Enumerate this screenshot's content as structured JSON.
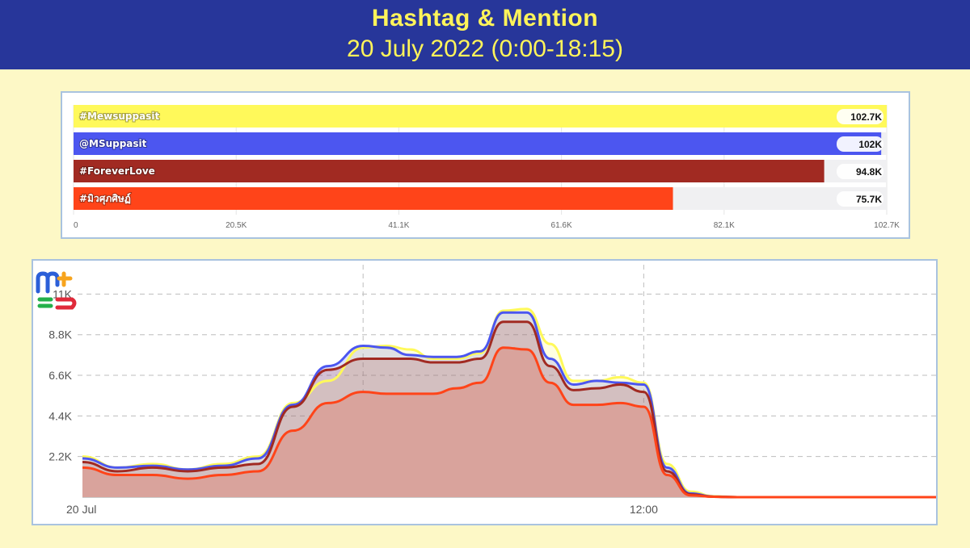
{
  "header": {
    "title": "Hashtag & Mention",
    "subtitle": "20 July 2022 (0:00-18:15)"
  },
  "chart_data": [
    {
      "type": "bar",
      "orientation": "horizontal",
      "categories": [
        "#Mewsuppasit",
        "@MSuppasit",
        "#ForeverLove",
        "#มิวศุภศิษฏ์"
      ],
      "values": [
        102.7,
        102,
        94.8,
        75.7
      ],
      "value_labels": [
        "102.7K",
        "102K",
        "94.8K",
        "75.7K"
      ],
      "unit": "K",
      "xlim": [
        0,
        102.7
      ],
      "x_ticks": [
        "0",
        "20.5K",
        "41.1K",
        "61.6K",
        "82.1K",
        "102.7K"
      ],
      "colors": [
        "#fff95a",
        "#4c56f0",
        "#a12a22",
        "#ff4419"
      ],
      "grid": true
    },
    {
      "type": "area",
      "x": [
        0,
        0.75,
        1.5,
        2.25,
        3,
        3.75,
        4.5,
        5.25,
        6,
        6.5,
        7,
        7.5,
        8,
        8.5,
        9,
        9.5,
        10,
        10.5,
        11,
        11.5,
        12,
        12.5,
        13,
        13.5,
        14,
        14.5,
        15,
        15.5,
        16,
        16.5,
        17,
        17.25,
        17.5,
        17.75,
        18,
        18.25
      ],
      "x_ticks": [
        "20 Jul",
        "12:00"
      ],
      "x_tick_positions": [
        0,
        12
      ],
      "y_ticks": [
        "2.2K",
        "4.4K",
        "6.6K",
        "8.8K",
        "11K"
      ],
      "y_tick_values": [
        2.2,
        4.4,
        6.6,
        8.8,
        11
      ],
      "ylim": [
        0,
        11
      ],
      "grid": true,
      "series": [
        {
          "values": [
            2.2,
            1.6,
            1.8,
            1.5,
            1.8,
            2.2,
            5.1,
            6.3,
            8.1,
            8.2,
            8.0,
            7.5,
            7.5,
            7.8,
            10.1,
            10.2,
            8.3,
            6.3,
            6.3,
            6.5,
            6.2,
            1.8,
            0.3,
            0.05,
            0.0,
            0.0,
            0.0,
            0.0,
            0.0,
            0.0,
            0.0,
            0.0,
            0.0,
            0.0,
            0.0,
            0.0
          ],
          "color": "#fff95a"
        },
        {
          "values": [
            2.1,
            1.6,
            1.7,
            1.5,
            1.7,
            2.1,
            5.0,
            7.1,
            8.2,
            8.1,
            7.7,
            7.6,
            7.6,
            7.9,
            10.0,
            10.0,
            7.5,
            6.1,
            6.3,
            6.2,
            6.1,
            1.6,
            0.2,
            0.03,
            0.0,
            0.0,
            0.0,
            0.0,
            0.0,
            0.0,
            0.0,
            0.0,
            0.0,
            0.0,
            0.0,
            0.0
          ],
          "color": "#4c56f0"
        },
        {
          "values": [
            1.9,
            1.4,
            1.6,
            1.4,
            1.6,
            1.8,
            4.9,
            6.9,
            7.5,
            7.5,
            7.5,
            7.3,
            7.3,
            7.5,
            9.5,
            9.5,
            7.1,
            5.8,
            5.9,
            6.1,
            5.7,
            1.4,
            0.15,
            0.02,
            0.0,
            0.0,
            0.0,
            0.0,
            0.0,
            0.0,
            0.0,
            0.0,
            0.0,
            0.0,
            0.0,
            0.0
          ],
          "color": "#a12a22"
        },
        {
          "values": [
            1.6,
            1.2,
            1.2,
            1.0,
            1.2,
            1.4,
            3.6,
            5.1,
            5.7,
            5.6,
            5.6,
            5.6,
            5.9,
            6.2,
            8.1,
            8.0,
            6.2,
            5.0,
            5.0,
            5.1,
            4.9,
            1.2,
            0.1,
            0.02,
            0.0,
            0.0,
            0.0,
            0.0,
            0.0,
            0.0,
            0.0,
            0.0,
            0.0,
            0.0,
            0.0,
            0.0
          ],
          "color": "#ff4419"
        }
      ]
    }
  ],
  "logo": {
    "name": "mewtopia-logo-icon",
    "colors": [
      "#2b5fd8",
      "#f7a41d",
      "#e02a3a",
      "#23b04a"
    ]
  }
}
